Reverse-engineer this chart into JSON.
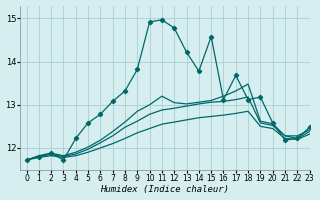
{
  "xlabel": "Humidex (Indice chaleur)",
  "ylabel": "",
  "xlim": [
    -0.5,
    23
  ],
  "ylim": [
    11.5,
    15.3
  ],
  "yticks": [
    12,
    13,
    14,
    15
  ],
  "xticks": [
    0,
    1,
    2,
    3,
    4,
    5,
    6,
    7,
    8,
    9,
    10,
    11,
    12,
    13,
    14,
    15,
    16,
    17,
    18,
    19,
    20,
    21,
    22,
    23
  ],
  "bg_color": "#d6eef0",
  "line_color": "#006868",
  "grid_color": "#aed4d8",
  "smooth1_x": [
    0,
    1,
    2,
    3,
    4,
    5,
    6,
    7,
    8,
    9,
    10,
    11,
    12,
    13,
    14,
    15,
    16,
    17,
    18,
    19,
    20,
    21,
    22,
    23
  ],
  "smooth1_y": [
    11.72,
    11.78,
    11.82,
    11.78,
    11.82,
    11.9,
    12.0,
    12.1,
    12.22,
    12.35,
    12.45,
    12.55,
    12.6,
    12.65,
    12.7,
    12.73,
    12.76,
    12.8,
    12.85,
    12.5,
    12.45,
    12.22,
    12.2,
    12.32
  ],
  "smooth2_x": [
    0,
    1,
    2,
    3,
    4,
    5,
    6,
    7,
    8,
    9,
    10,
    11,
    12,
    13,
    14,
    15,
    16,
    17,
    18,
    19,
    20,
    21,
    22,
    23
  ],
  "smooth2_y": [
    11.72,
    11.8,
    11.85,
    11.8,
    11.86,
    11.97,
    12.12,
    12.28,
    12.48,
    12.62,
    12.78,
    12.88,
    12.92,
    12.97,
    13.02,
    13.06,
    13.08,
    13.12,
    13.18,
    12.58,
    12.52,
    12.28,
    12.22,
    12.38
  ],
  "smooth3_x": [
    0,
    1,
    2,
    3,
    4,
    5,
    6,
    7,
    8,
    9,
    10,
    11,
    12,
    13,
    14,
    15,
    16,
    17,
    18,
    19,
    20,
    21,
    22,
    23
  ],
  "smooth3_y": [
    11.72,
    11.82,
    11.88,
    11.82,
    11.9,
    12.02,
    12.18,
    12.38,
    12.6,
    12.85,
    13.0,
    13.2,
    13.05,
    13.02,
    13.06,
    13.1,
    13.2,
    13.32,
    13.48,
    12.62,
    12.56,
    12.28,
    12.28,
    12.42
  ],
  "peak_x": [
    0,
    1,
    2,
    3,
    4,
    5,
    6,
    7,
    8,
    9,
    10,
    11,
    12,
    13,
    14,
    15,
    16,
    17,
    18,
    19,
    20,
    21,
    22,
    23
  ],
  "peak_y": [
    11.72,
    11.8,
    11.88,
    11.72,
    12.22,
    12.58,
    12.78,
    13.08,
    13.32,
    13.82,
    14.92,
    14.97,
    14.78,
    14.22,
    13.78,
    14.58,
    13.12,
    13.68,
    13.12,
    13.18,
    12.58,
    12.18,
    12.22,
    12.48
  ],
  "marker": "D",
  "markersize": 2.2,
  "linewidth": 0.9,
  "smooth_linewidth": 0.9
}
